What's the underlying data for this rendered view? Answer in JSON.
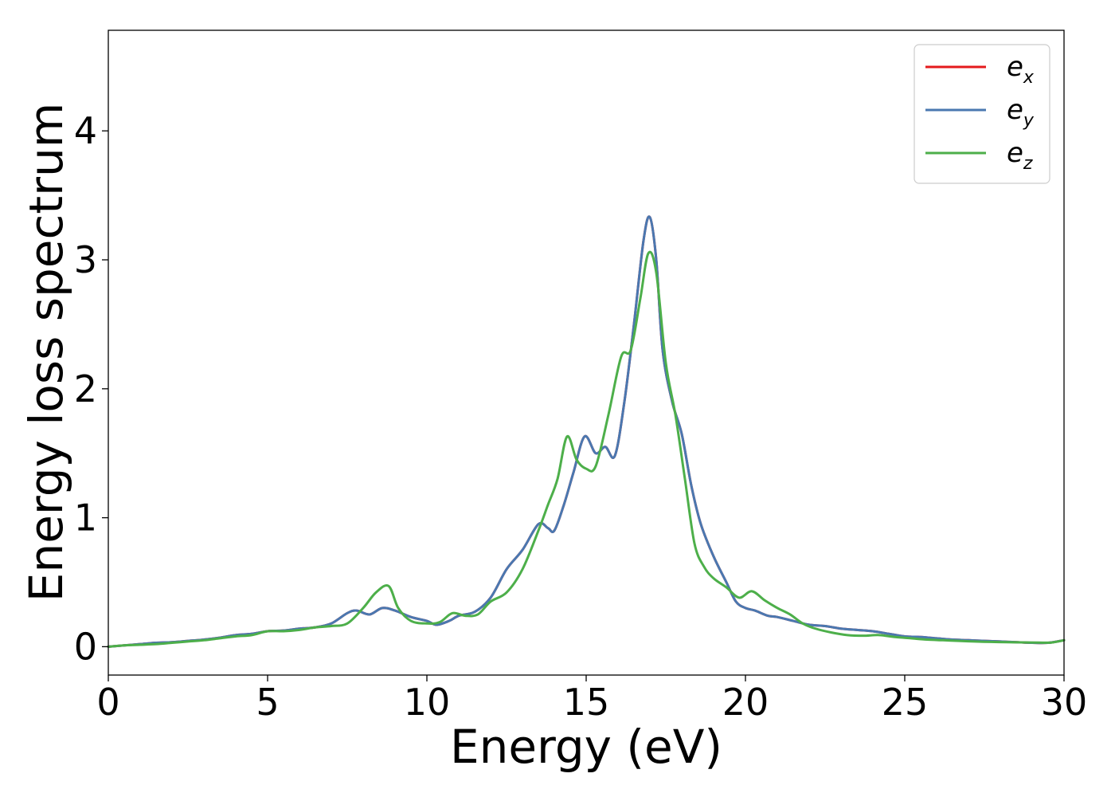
{
  "chart_data": {
    "type": "line",
    "xlabel": "Energy (eV)",
    "ylabel": "Energy loss spectrum",
    "xlim": [
      0,
      30
    ],
    "ylim": [
      -0.22,
      4.78
    ],
    "xticks": [
      0,
      5,
      10,
      15,
      20,
      25,
      30
    ],
    "yticks": [
      0,
      1,
      2,
      3,
      4
    ],
    "grid": false,
    "legend_position": "top-right",
    "series": [
      {
        "name": "e_x",
        "legend_base": "e",
        "legend_sub": "x",
        "color": "#e41a1c",
        "x": [
          0,
          0.5,
          1,
          1.5,
          2,
          2.5,
          3,
          3.5,
          4,
          4.5,
          5,
          5.5,
          6,
          6.5,
          7,
          7.5,
          7.8,
          8.2,
          8.6,
          9,
          9.5,
          10,
          10.3,
          10.7,
          11,
          11.5,
          12,
          12.5,
          13,
          13.5,
          13.8,
          14,
          14.3,
          14.6,
          14.95,
          15.3,
          15.6,
          15.9,
          16.2,
          16.5,
          16.8,
          17,
          17.2,
          17.4,
          17.7,
          18,
          18.3,
          18.6,
          19,
          19.4,
          19.7,
          20,
          20.3,
          20.7,
          21,
          21.5,
          22,
          22.5,
          23,
          23.5,
          24,
          24.5,
          25,
          25.5,
          26,
          26.5,
          27,
          27.5,
          28,
          28.5,
          29,
          29.5,
          30
        ],
        "y": [
          0.0,
          0.01,
          0.02,
          0.03,
          0.035,
          0.045,
          0.055,
          0.07,
          0.09,
          0.1,
          0.12,
          0.125,
          0.14,
          0.15,
          0.18,
          0.26,
          0.28,
          0.25,
          0.3,
          0.28,
          0.23,
          0.2,
          0.17,
          0.2,
          0.24,
          0.27,
          0.38,
          0.6,
          0.75,
          0.95,
          0.92,
          0.9,
          1.1,
          1.35,
          1.63,
          1.5,
          1.55,
          1.48,
          1.9,
          2.5,
          3.15,
          3.33,
          3.0,
          2.3,
          1.9,
          1.65,
          1.25,
          0.95,
          0.7,
          0.5,
          0.35,
          0.3,
          0.28,
          0.24,
          0.23,
          0.2,
          0.17,
          0.16,
          0.14,
          0.13,
          0.12,
          0.1,
          0.08,
          0.075,
          0.065,
          0.055,
          0.05,
          0.045,
          0.04,
          0.035,
          0.03,
          0.03,
          0.05
        ]
      },
      {
        "name": "e_y",
        "legend_base": "e",
        "legend_sub": "y",
        "color": "#4a78b0",
        "x": [
          0,
          0.5,
          1,
          1.5,
          2,
          2.5,
          3,
          3.5,
          4,
          4.5,
          5,
          5.5,
          6,
          6.5,
          7,
          7.5,
          7.8,
          8.2,
          8.6,
          9,
          9.5,
          10,
          10.3,
          10.7,
          11,
          11.5,
          12,
          12.5,
          13,
          13.5,
          13.8,
          14,
          14.3,
          14.6,
          14.95,
          15.3,
          15.6,
          15.9,
          16.2,
          16.5,
          16.8,
          17,
          17.2,
          17.4,
          17.7,
          18,
          18.3,
          18.6,
          19,
          19.4,
          19.7,
          20,
          20.3,
          20.7,
          21,
          21.5,
          22,
          22.5,
          23,
          23.5,
          24,
          24.5,
          25,
          25.5,
          26,
          26.5,
          27,
          27.5,
          28,
          28.5,
          29,
          29.5,
          30
        ],
        "y": [
          0.0,
          0.01,
          0.02,
          0.03,
          0.035,
          0.045,
          0.055,
          0.07,
          0.09,
          0.1,
          0.12,
          0.125,
          0.14,
          0.15,
          0.18,
          0.26,
          0.28,
          0.25,
          0.3,
          0.28,
          0.23,
          0.2,
          0.17,
          0.2,
          0.24,
          0.27,
          0.38,
          0.6,
          0.75,
          0.95,
          0.92,
          0.9,
          1.1,
          1.35,
          1.63,
          1.5,
          1.55,
          1.48,
          1.9,
          2.5,
          3.15,
          3.33,
          3.0,
          2.3,
          1.9,
          1.65,
          1.25,
          0.95,
          0.7,
          0.5,
          0.35,
          0.3,
          0.28,
          0.24,
          0.23,
          0.2,
          0.17,
          0.16,
          0.14,
          0.13,
          0.12,
          0.1,
          0.08,
          0.075,
          0.065,
          0.055,
          0.05,
          0.045,
          0.04,
          0.035,
          0.03,
          0.03,
          0.05
        ]
      },
      {
        "name": "e_z",
        "legend_base": "e",
        "legend_sub": "z",
        "color": "#4daf4a",
        "x": [
          0,
          0.5,
          1,
          1.5,
          2,
          2.5,
          3,
          3.5,
          4,
          4.5,
          5,
          5.5,
          6,
          6.5,
          7,
          7.5,
          8,
          8.4,
          8.8,
          9.1,
          9.5,
          10,
          10.4,
          10.8,
          11.2,
          11.6,
          12,
          12.5,
          13,
          13.5,
          13.8,
          14.1,
          14.4,
          14.7,
          15,
          15.3,
          15.7,
          16.1,
          16.4,
          16.7,
          16.95,
          17.2,
          17.5,
          17.8,
          18.1,
          18.4,
          18.7,
          19,
          19.4,
          19.8,
          20.2,
          20.6,
          21,
          21.4,
          21.8,
          22.2,
          22.7,
          23.2,
          23.7,
          24.2,
          24.7,
          25.2,
          25.7,
          26.2,
          26.7,
          27.2,
          27.7,
          28.2,
          28.7,
          29.2,
          29.6,
          30
        ],
        "y": [
          0.0,
          0.01,
          0.015,
          0.02,
          0.03,
          0.04,
          0.05,
          0.065,
          0.08,
          0.09,
          0.12,
          0.12,
          0.13,
          0.15,
          0.16,
          0.18,
          0.3,
          0.42,
          0.47,
          0.3,
          0.2,
          0.18,
          0.19,
          0.26,
          0.24,
          0.25,
          0.35,
          0.42,
          0.6,
          0.9,
          1.1,
          1.3,
          1.63,
          1.45,
          1.38,
          1.4,
          1.8,
          2.25,
          2.3,
          2.7,
          3.05,
          2.9,
          2.2,
          1.8,
          1.3,
          0.8,
          0.62,
          0.53,
          0.46,
          0.38,
          0.43,
          0.36,
          0.3,
          0.25,
          0.18,
          0.14,
          0.11,
          0.09,
          0.085,
          0.09,
          0.075,
          0.065,
          0.055,
          0.05,
          0.045,
          0.04,
          0.037,
          0.035,
          0.033,
          0.032,
          0.032,
          0.05
        ]
      }
    ]
  }
}
